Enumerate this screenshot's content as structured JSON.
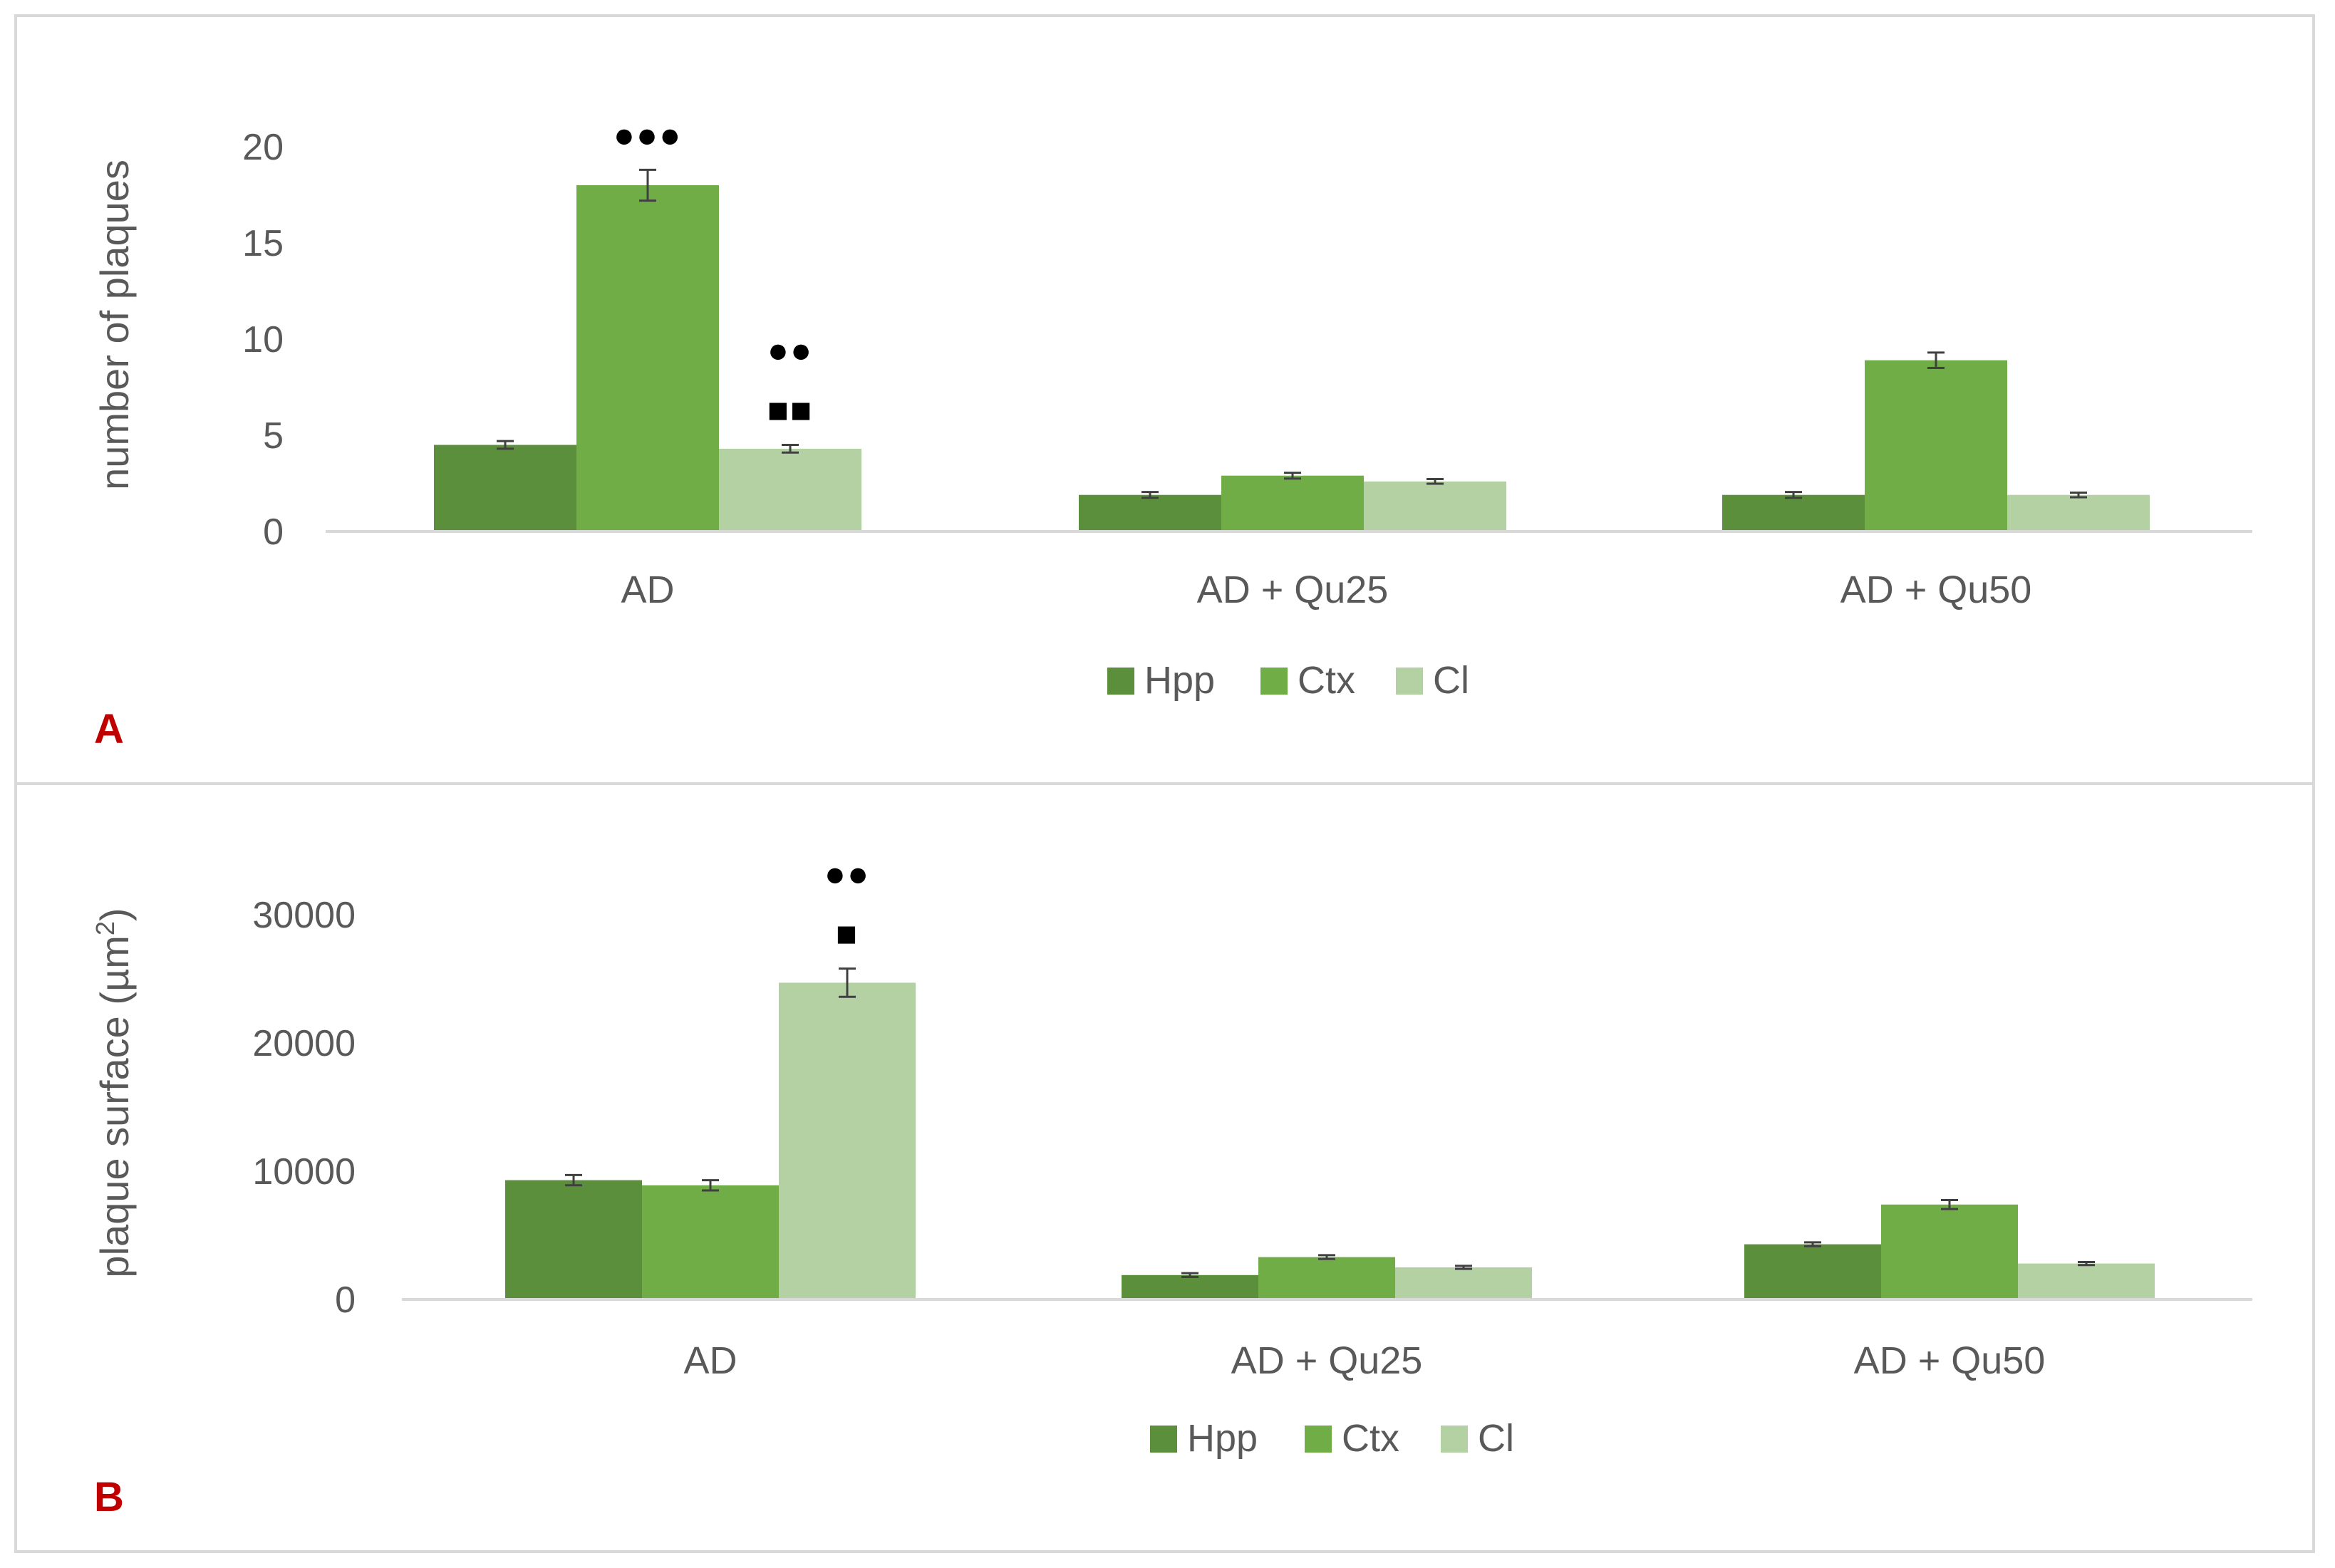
{
  "colors": {
    "Hpp": "#5b8f3b",
    "Ctx": "#70ad47",
    "Cl": "#b3d1a2",
    "axis": "#d9d9d9",
    "text": "#595959",
    "error": "#404040",
    "marker": "#000000"
  },
  "chart_data": [
    {
      "type": "bar",
      "panel_label": "A",
      "categories": [
        "AD",
        "AD + Qu25",
        "AD + Qu50"
      ],
      "ylabel": "number of plaques",
      "ylabel_sup": "",
      "ylabel_end": "",
      "ylim": [
        0,
        20
      ],
      "yticks": [
        0,
        5,
        10,
        15,
        20
      ],
      "grid": false,
      "legend_position": "bottom",
      "series": [
        {
          "name": "Hpp",
          "values": [
            4.5,
            1.9,
            1.9
          ],
          "errors": [
            0.2,
            0.15,
            0.15
          ]
        },
        {
          "name": "Ctx",
          "values": [
            18.0,
            2.9,
            8.9
          ],
          "errors": [
            0.8,
            0.15,
            0.4
          ]
        },
        {
          "name": "Cl",
          "values": [
            4.3,
            2.6,
            1.9
          ],
          "errors": [
            0.2,
            0.12,
            0.12
          ]
        }
      ],
      "annotations": [
        {
          "category": 0,
          "series": 1,
          "lines": [
            "●●●"
          ]
        },
        {
          "category": 0,
          "series": 2,
          "lines": [
            "●●",
            "■■"
          ]
        }
      ]
    },
    {
      "type": "bar",
      "panel_label": "B",
      "categories": [
        "AD",
        "AD + Qu25",
        "AD + Qu50"
      ],
      "ylabel": "plaque surface (µm",
      "ylabel_sup": "2",
      "ylabel_end": ")",
      "ylim": [
        0,
        30000
      ],
      "yticks": [
        0,
        10000,
        20000,
        30000
      ],
      "grid": false,
      "legend_position": "bottom",
      "series": [
        {
          "name": "Hpp",
          "values": [
            9300,
            1900,
            4300
          ],
          "errors": [
            400,
            150,
            150
          ]
        },
        {
          "name": "Ctx",
          "values": [
            8900,
            3300,
            7400
          ],
          "errors": [
            400,
            150,
            350
          ]
        },
        {
          "name": "Cl",
          "values": [
            24700,
            2500,
            2800
          ],
          "errors": [
            1100,
            120,
            120
          ]
        }
      ],
      "annotations": [
        {
          "category": 0,
          "series": 2,
          "lines": [
            "●●",
            "■"
          ]
        }
      ]
    }
  ]
}
